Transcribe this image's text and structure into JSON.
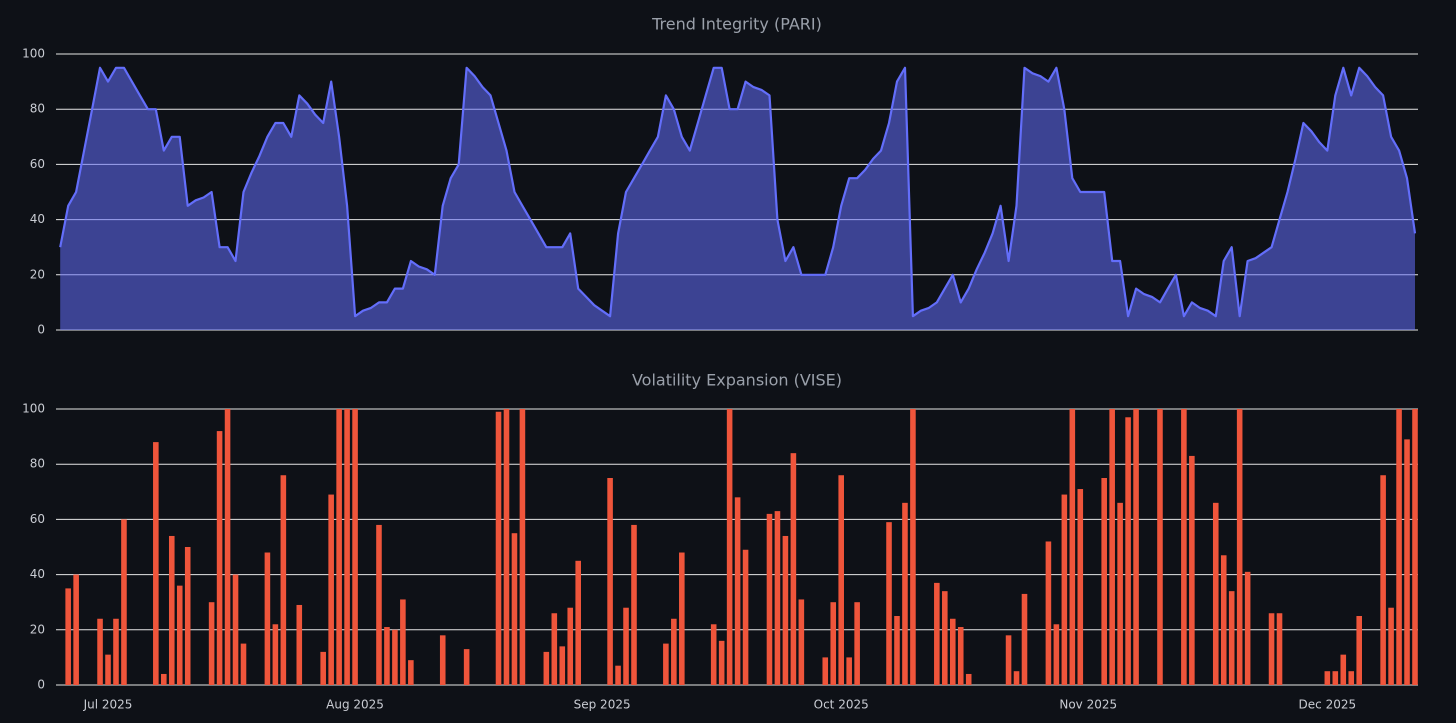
{
  "chart_data": [
    {
      "type": "area",
      "title": "Trend Integrity (PARI)",
      "color": "#636efa",
      "fill": "rgba(99,110,250,0.55)",
      "ylim": [
        0,
        100
      ],
      "yticks": [
        0,
        20,
        40,
        60,
        80,
        100
      ],
      "grid": true,
      "values": [
        30,
        45,
        50,
        65,
        80,
        95,
        90,
        95,
        95,
        90,
        85,
        80,
        80,
        65,
        70,
        70,
        45,
        47,
        48,
        50,
        30,
        30,
        25,
        50,
        57,
        63,
        70,
        75,
        75,
        70,
        85,
        82,
        78,
        75,
        90,
        70,
        45,
        5,
        7,
        8,
        10,
        10,
        15,
        15,
        25,
        23,
        22,
        20,
        45,
        55,
        60,
        95,
        92,
        88,
        85,
        75,
        65,
        50,
        45,
        40,
        35,
        30,
        30,
        30,
        35,
        15,
        12,
        9,
        7,
        5,
        35,
        50,
        55,
        60,
        65,
        70,
        85,
        80,
        70,
        65,
        75,
        85,
        95,
        95,
        80,
        80,
        90,
        88,
        87,
        85,
        40,
        25,
        30,
        20,
        20,
        20,
        20,
        30,
        45,
        55,
        55,
        58,
        62,
        65,
        75,
        90,
        95,
        5,
        7,
        8,
        10,
        15,
        20,
        10,
        15,
        22,
        28,
        35,
        45,
        25,
        45,
        95,
        93,
        92,
        90,
        95,
        80,
        55,
        50,
        50,
        50,
        50,
        25,
        25,
        5,
        15,
        13,
        12,
        10,
        15,
        20,
        5,
        10,
        8,
        7,
        5,
        25,
        30,
        5,
        25,
        26,
        28,
        30,
        40,
        50,
        62,
        75,
        72,
        68,
        65,
        85,
        95,
        85,
        95,
        92,
        88,
        85,
        70,
        65,
        55,
        35
      ]
    },
    {
      "type": "bar",
      "title": "Volatility Expansion (VISE)",
      "color": "#ef553b",
      "ylim": [
        0,
        100
      ],
      "yticks": [
        0,
        20,
        40,
        60,
        80,
        100
      ],
      "grid": true,
      "categories": [
        null,
        null,
        null,
        null,
        null,
        null,
        "Jul 2025",
        null,
        null,
        null,
        null,
        null,
        null,
        null,
        null,
        null,
        null,
        null,
        null,
        null,
        null,
        null,
        null,
        null,
        null,
        null,
        null,
        null,
        null,
        null,
        null,
        null,
        null,
        null,
        null,
        null,
        null,
        "Aug 2025",
        null,
        null,
        null,
        null,
        null,
        null,
        null,
        null,
        null,
        null,
        null,
        null,
        null,
        null,
        null,
        null,
        null,
        null,
        null,
        null,
        null,
        null,
        null,
        null,
        null,
        null,
        null,
        null,
        null,
        null,
        "Sep 2025",
        null,
        null,
        null,
        null,
        null,
        null,
        null,
        null,
        null,
        null,
        null,
        null,
        null,
        null,
        null,
        null,
        null,
        null,
        null,
        null,
        null,
        null,
        null,
        null,
        null,
        null,
        null,
        null,
        null,
        "Oct 2025",
        null,
        null,
        null,
        null,
        null,
        null,
        null,
        null,
        null,
        null,
        null,
        null,
        null,
        null,
        null,
        null,
        null,
        null,
        null,
        null,
        null,
        null,
        null,
        null,
        null,
        null,
        null,
        null,
        null,
        null,
        "Nov 2025",
        null,
        null,
        null,
        null,
        null,
        null,
        null,
        null,
        null,
        null,
        null,
        null,
        null,
        null,
        null,
        null,
        null,
        null,
        null,
        null,
        null,
        null,
        null,
        null,
        null,
        null,
        null,
        null,
        null,
        "Dec 2025",
        null,
        null,
        null,
        null,
        null,
        null,
        null,
        null,
        null,
        null,
        null
      ],
      "values": [
        0,
        35,
        40,
        0,
        0,
        24,
        11,
        24,
        60,
        0,
        0,
        0,
        88,
        4,
        54,
        36,
        50,
        0,
        0,
        30,
        92,
        100,
        40,
        15,
        0,
        0,
        48,
        22,
        76,
        0,
        29,
        0,
        0,
        12,
        69,
        100,
        100,
        100,
        0,
        0,
        58,
        21,
        20,
        31,
        9,
        0,
        0,
        0,
        18,
        0,
        0,
        13,
        0,
        0,
        0,
        99,
        100,
        55,
        100,
        0,
        0,
        12,
        26,
        14,
        28,
        45,
        0,
        0,
        0,
        75,
        7,
        28,
        58,
        0,
        0,
        0,
        15,
        24,
        48,
        0,
        0,
        0,
        22,
        16,
        100,
        68,
        49,
        0,
        0,
        62,
        63,
        54,
        84,
        31,
        0,
        0,
        10,
        30,
        76,
        10,
        30,
        0,
        0,
        0,
        59,
        25,
        66,
        100,
        0,
        0,
        37,
        34,
        24,
        21,
        4,
        0,
        0,
        0,
        0,
        18,
        5,
        33,
        0,
        0,
        52,
        22,
        69,
        100,
        71,
        0,
        0,
        75,
        100,
        66,
        97,
        100,
        0,
        0,
        100,
        0,
        0,
        100,
        83,
        0,
        0,
        66,
        47,
        34,
        100,
        41,
        0,
        0,
        26,
        26,
        0,
        0,
        0,
        0,
        0,
        5,
        5,
        11,
        5,
        25,
        0,
        0,
        76,
        28,
        100,
        89,
        100
      ]
    }
  ]
}
